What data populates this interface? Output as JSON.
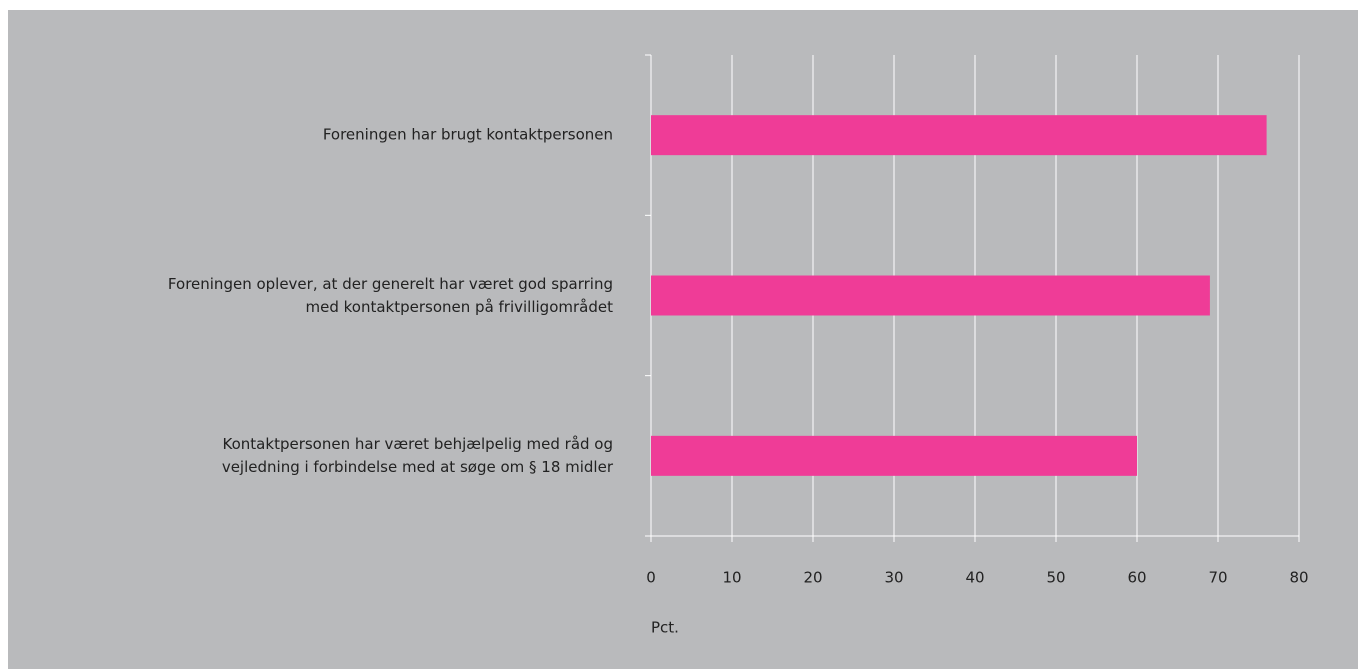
{
  "chart_data": {
    "type": "bar",
    "orientation": "horizontal",
    "categories": [
      "Foreningen har brugt kontaktpersonen",
      "Foreningen oplever, at der generelt har været god sparring\nmed kontaktpersonen på frivilligområdet",
      "Kontaktpersonen har været behjælpelig med råd og\nvejledning i forbindelse med at søge om § 18 midler"
    ],
    "values": [
      76,
      69,
      60
    ],
    "color": "#ef3c97",
    "xlim": [
      0,
      80
    ],
    "xticks": [
      0,
      10,
      20,
      30,
      40,
      50,
      60,
      70,
      80
    ],
    "xlabel": "Pct.",
    "grid": true
  }
}
